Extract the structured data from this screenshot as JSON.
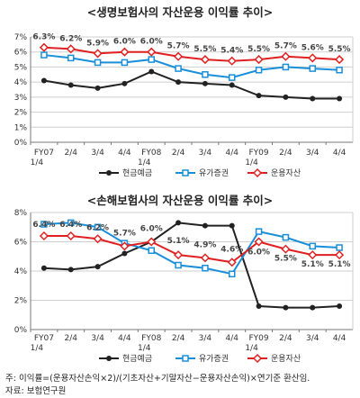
{
  "chart_data": [
    {
      "type": "line",
      "title": "<생명보험사의 자산운용 이익률 추이>",
      "categories": [
        "FY07\n1/4",
        "2/4",
        "3/4",
        "4/4",
        "FY08\n1/4",
        "2/4",
        "3/4",
        "4/4",
        "FY09\n1/4",
        "2/4",
        "3/4",
        "4/4"
      ],
      "ylim": [
        0,
        7
      ],
      "yticks": [
        "0%",
        "1%",
        "2%",
        "3%",
        "4%",
        "5%",
        "6%",
        "7%"
      ],
      "grid": true,
      "legend_position": "bottom",
      "series": [
        {
          "name": "현금예금",
          "color": "#222222",
          "marker": "circle",
          "values": [
            4.1,
            3.8,
            3.6,
            3.9,
            4.7,
            4.0,
            3.9,
            3.8,
            3.1,
            3.0,
            2.9,
            2.9
          ]
        },
        {
          "name": "유가증권",
          "color": "#1a8fd9",
          "marker": "square",
          "values": [
            5.8,
            5.6,
            5.3,
            5.3,
            5.5,
            4.9,
            4.5,
            4.3,
            4.8,
            5.0,
            4.9,
            4.8
          ]
        },
        {
          "name": "운용자산",
          "color": "#e02020",
          "marker": "diamond",
          "values": [
            6.3,
            6.2,
            5.9,
            6.0,
            6.0,
            5.7,
            5.5,
            5.4,
            5.5,
            5.7,
            5.6,
            5.5
          ],
          "labels": [
            "6.3%",
            "6.2%",
            "5.9%",
            "6.0%",
            "6.0%",
            "5.7%",
            "5.5%",
            "5.4%",
            "5.5%",
            "5.7%",
            "5.6%",
            "5.5%"
          ]
        }
      ]
    },
    {
      "type": "line",
      "title": "<손해보험사의 자산운용 이익률 추이>",
      "categories": [
        "FY07\n1/4",
        "2/4",
        "3/4",
        "4/4",
        "FY08\n1/4",
        "2/4",
        "3/4",
        "4/4",
        "FY09\n1/4",
        "2/4",
        "3/4",
        "4/4"
      ],
      "ylim": [
        0,
        8
      ],
      "yticks": [
        "0%",
        "2%",
        "4%",
        "6%",
        "8%"
      ],
      "grid": true,
      "legend_position": "bottom",
      "series": [
        {
          "name": "현금예금",
          "color": "#222222",
          "marker": "circle",
          "values": [
            4.2,
            4.1,
            4.3,
            5.2,
            6.0,
            7.3,
            7.1,
            7.1,
            1.6,
            1.5,
            1.5,
            1.6
          ]
        },
        {
          "name": "유가증권",
          "color": "#1a8fd9",
          "marker": "square",
          "values": [
            7.2,
            7.3,
            7.0,
            5.9,
            5.4,
            4.4,
            4.2,
            3.8,
            6.7,
            6.3,
            5.7,
            5.6
          ]
        },
        {
          "name": "운용자산",
          "color": "#e02020",
          "marker": "diamond",
          "values": [
            6.4,
            6.4,
            6.2,
            5.7,
            6.0,
            5.1,
            4.9,
            4.6,
            6.0,
            5.5,
            5.1,
            5.1
          ],
          "labels": [
            "6.4%",
            "6.4%",
            "6.2%",
            "5.7%",
            "6.0%",
            "5.1%",
            "4.9%",
            "4.6%",
            "6.0%",
            "5.5%",
            "5.1%",
            "5.1%"
          ]
        }
      ]
    }
  ],
  "footnote": {
    "formula": "주: 이익률=(운용자산손익×2)/(기초자산+기말자산−운용자산손익)×연기준 환산임.",
    "source": "자료: 보험연구원"
  }
}
